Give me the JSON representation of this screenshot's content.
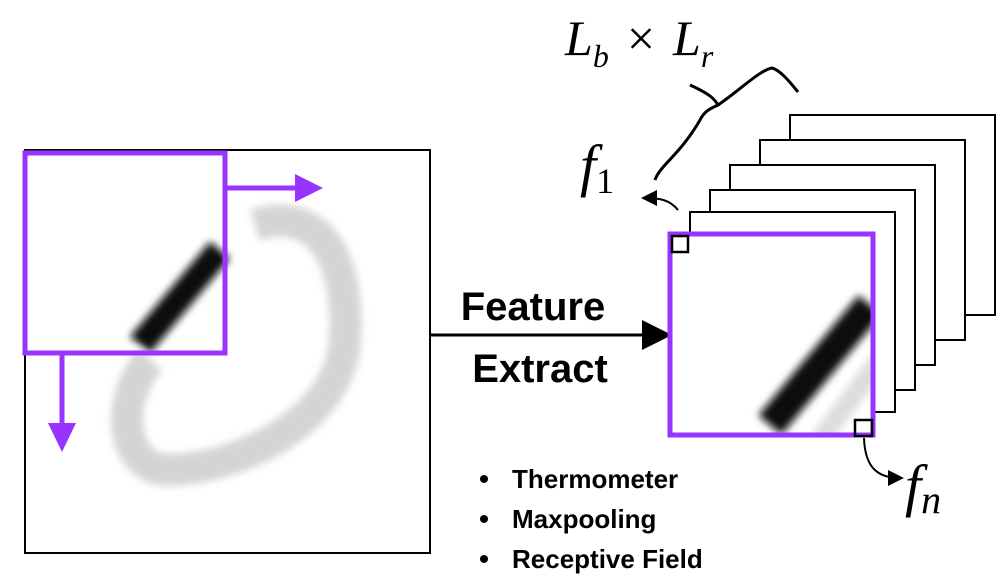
{
  "block_size": {
    "left": {
      "base": "L",
      "sub": "b"
    },
    "operator": "×",
    "right": {
      "base": "L",
      "sub": "r"
    }
  },
  "first_feature": {
    "base": "f",
    "sub": "1"
  },
  "last_feature": {
    "base": "f",
    "sub": "n"
  },
  "arrow_label": [
    "Feature",
    "Extract"
  ],
  "methods": [
    "Thermometer",
    "Maxpooling",
    "Receptive Field"
  ]
}
